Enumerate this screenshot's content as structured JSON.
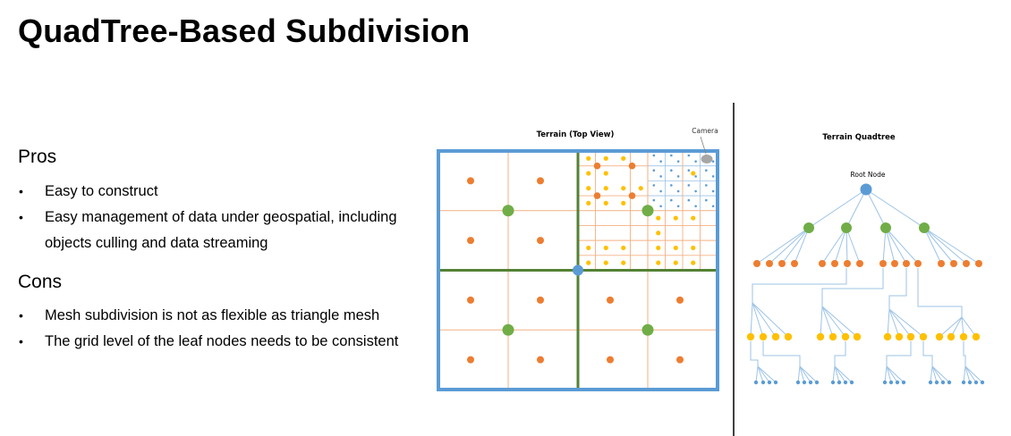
{
  "slide": {
    "title": "QuadTree-Based Subdivision"
  },
  "pros": {
    "heading": "Pros",
    "items": [
      "Easy to construct",
      "Easy management of data under geospatial, including objects culling and data streaming"
    ]
  },
  "cons": {
    "heading": "Cons",
    "items": [
      "Mesh subdivision is not as flexible as triangle mesh",
      "The grid level of the leaf nodes needs to be consistent"
    ]
  },
  "bullet_glyph": "•",
  "terrain_view": {
    "title": "Terrain (Top View)",
    "camera_label": "Camera"
  },
  "quadtree_view": {
    "title": "Terrain Quadtree",
    "root_label": "Root Node"
  },
  "colors": {
    "frame": "#5b9bd5",
    "level1_line": "#548235",
    "fine_line": "#f4b183",
    "finest_line": "#9dc3e6",
    "root_node": "#5b9bd5",
    "level1_node": "#70ad47",
    "level2_node": "#ed7d31",
    "level3_node": "#ffc000",
    "level4_node": "#5b9bd5",
    "camera": "#a6a6a6",
    "edge": "#9dc3e6",
    "divider": "#000000"
  }
}
